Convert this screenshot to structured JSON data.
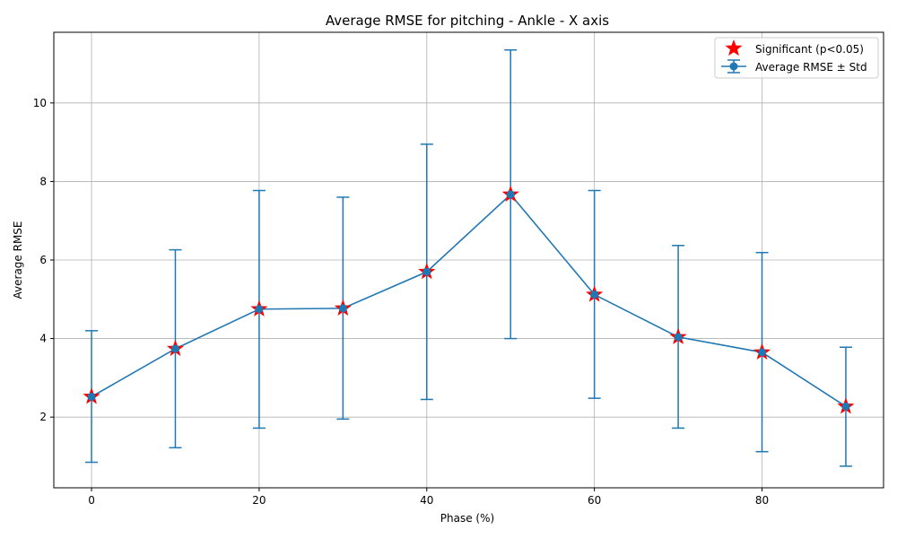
{
  "colors": {
    "line": "#1f77b4",
    "marker_fill": "#1f77b4",
    "significant_star": "#ff0000",
    "grid": "#b0b0b0",
    "axes": "#000000"
  },
  "legend_labels": {
    "significant": "Significant (p<0.05)",
    "series": "Average RMSE ± Std"
  },
  "chart_data": {
    "type": "line",
    "title": "Average RMSE for pitching - Ankle - X axis",
    "xlabel": "Phase (%)",
    "ylabel": "Average RMSE",
    "xlim": [
      -4.5,
      94.5
    ],
    "ylim": [
      0.2,
      11.8
    ],
    "xticks": [
      0,
      20,
      40,
      60,
      80
    ],
    "yticks": [
      2,
      4,
      6,
      8,
      10
    ],
    "grid": true,
    "legend_position": "top-right",
    "series": [
      {
        "name": "Average RMSE ± Std",
        "x": [
          0,
          10,
          20,
          30,
          40,
          50,
          60,
          70,
          80,
          90
        ],
        "y": [
          2.52,
          3.74,
          4.75,
          4.77,
          5.7,
          7.67,
          5.12,
          4.04,
          3.65,
          2.27
        ],
        "err_low": [
          0.85,
          1.22,
          1.72,
          1.95,
          2.45,
          4.0,
          2.48,
          1.72,
          1.12,
          0.75
        ],
        "err_high": [
          4.2,
          6.26,
          7.77,
          7.6,
          8.95,
          11.35,
          7.77,
          6.37,
          6.19,
          3.78
        ]
      }
    ],
    "significant_x": [
      0,
      10,
      20,
      30,
      40,
      50,
      60,
      70,
      80,
      90
    ]
  }
}
